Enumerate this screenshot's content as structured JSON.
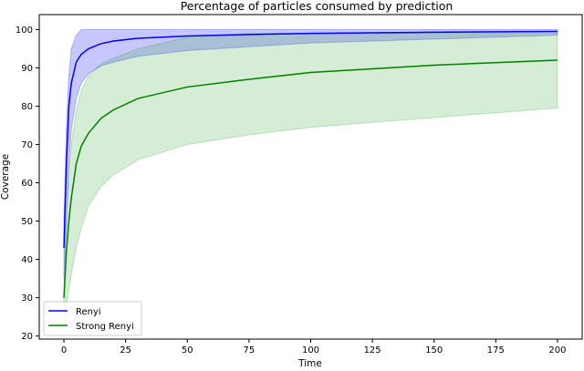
{
  "chart_data": {
    "type": "line",
    "title": "Percentage of particles consumed by prediction",
    "xlabel": "Time",
    "ylabel": "Coverage",
    "xlim": [
      -10,
      210
    ],
    "ylim": [
      19.2,
      103.9
    ],
    "xticks": [
      0,
      25,
      50,
      75,
      100,
      125,
      150,
      175,
      200
    ],
    "yticks": [
      20,
      30,
      40,
      50,
      60,
      70,
      80,
      90,
      100
    ],
    "grid": false,
    "legend": "lower-left",
    "series": [
      {
        "name": "Renyi",
        "color": "#0000ff",
        "band_color": "#0000ff",
        "x": [
          0,
          1,
          2,
          3,
          5,
          7,
          10,
          15,
          20,
          30,
          50,
          75,
          100,
          150,
          200
        ],
        "values": [
          43,
          65,
          80,
          86,
          91.5,
          93.5,
          95,
          96.3,
          97,
          97.7,
          98.3,
          98.7,
          99,
          99.3,
          99.5
        ],
        "band_lower": [
          35,
          50,
          65,
          74,
          82,
          86,
          88.5,
          90.5,
          91.5,
          93,
          94.5,
          95.5,
          96.5,
          97.5,
          98.5
        ],
        "band_upper": [
          50,
          75,
          88,
          95,
          98.5,
          100,
          100,
          100,
          100,
          100,
          100,
          100,
          100,
          100,
          100
        ]
      },
      {
        "name": "Strong Renyi",
        "color": "#008000",
        "band_color": "#2ca02c",
        "x": [
          0,
          1,
          2,
          3,
          5,
          7,
          10,
          15,
          20,
          30,
          50,
          75,
          100,
          150,
          200
        ],
        "values": [
          30,
          42,
          50,
          56,
          65,
          69.5,
          73,
          76.8,
          79,
          82,
          85,
          87,
          88.8,
          90.7,
          92
        ],
        "band_lower": [
          22,
          28,
          32,
          36,
          43,
          48,
          54,
          59,
          62,
          66,
          70,
          72.5,
          74.5,
          77,
          79.5
        ],
        "band_upper": [
          33,
          50,
          62,
          70,
          79,
          84,
          88,
          91,
          92.5,
          95,
          98,
          99,
          99,
          99,
          99
        ]
      }
    ]
  }
}
